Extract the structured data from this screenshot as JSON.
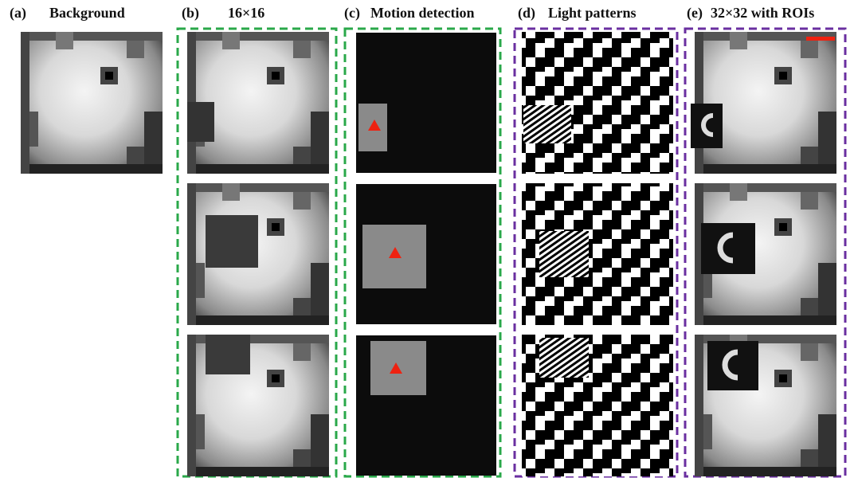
{
  "panels": [
    {
      "label": "(a)",
      "title": "Background"
    },
    {
      "label": "(b)",
      "title": "16×16"
    },
    {
      "label": "(c)",
      "title": "Motion detection"
    },
    {
      "label": "(d)",
      "title": "Light patterns"
    },
    {
      "label": "(e)",
      "title": "32×32 with ROIs"
    }
  ]
}
